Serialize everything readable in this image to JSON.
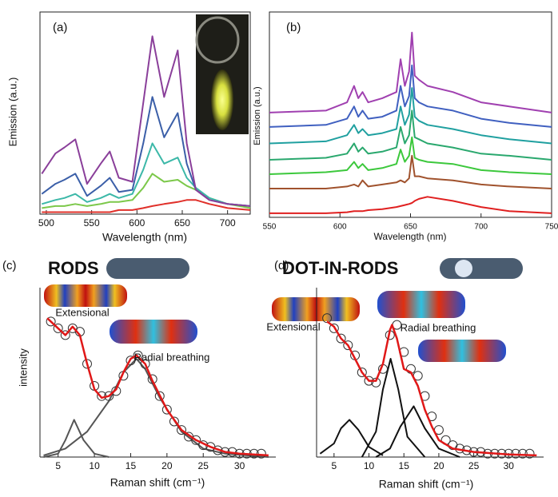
{
  "chart_data": [
    {
      "type": "line",
      "panel_label": "(a)",
      "xlabel": "Wavelength (nm)",
      "ylabel": "Emission (a.u.)",
      "frame": true,
      "x": [
        495,
        510,
        520,
        532,
        545,
        560,
        570,
        580,
        595,
        607,
        617,
        630,
        645,
        655,
        665,
        680,
        700,
        725
      ],
      "xlim": [
        493,
        725
      ],
      "xticks": [
        500,
        550,
        600,
        650,
        700
      ],
      "ylim": [
        0,
        1
      ],
      "series": [
        {
          "color": "#e0302a",
          "values": [
            0.01,
            0.01,
            0.01,
            0.01,
            0.01,
            0.01,
            0.01,
            0.02,
            0.02,
            0.03,
            0.04,
            0.05,
            0.06,
            0.07,
            0.07,
            0.05,
            0.03,
            0.02
          ]
        },
        {
          "color": "#7cc84a",
          "values": [
            0.03,
            0.04,
            0.04,
            0.05,
            0.04,
            0.05,
            0.06,
            0.06,
            0.07,
            0.13,
            0.2,
            0.16,
            0.17,
            0.14,
            0.12,
            0.08,
            0.05,
            0.03
          ]
        },
        {
          "color": "#3cb8a8",
          "values": [
            0.05,
            0.07,
            0.08,
            0.1,
            0.06,
            0.08,
            0.1,
            0.08,
            0.1,
            0.22,
            0.35,
            0.25,
            0.28,
            0.18,
            0.13,
            0.08,
            0.05,
            0.04
          ]
        },
        {
          "color": "#3b5fa8",
          "values": [
            0.1,
            0.15,
            0.17,
            0.2,
            0.09,
            0.14,
            0.18,
            0.11,
            0.12,
            0.35,
            0.58,
            0.38,
            0.5,
            0.25,
            0.12,
            0.07,
            0.05,
            0.04
          ]
        },
        {
          "color": "#8a3f9a",
          "values": [
            0.2,
            0.3,
            0.33,
            0.37,
            0.15,
            0.25,
            0.31,
            0.18,
            0.16,
            0.55,
            0.88,
            0.58,
            0.81,
            0.35,
            0.12,
            0.07,
            0.05,
            0.04
          ]
        }
      ]
    },
    {
      "type": "line",
      "panel_label": "(b)",
      "xlabel": "Wavelength (nm)",
      "ylabel": "Emission (a.u.)",
      "frame": true,
      "x": [
        550,
        590,
        605,
        610,
        613,
        616,
        620,
        630,
        640,
        643,
        646,
        649,
        651,
        653,
        656,
        662,
        680,
        700,
        720,
        750
      ],
      "xlim": [
        550,
        750
      ],
      "xticks": [
        550,
        600,
        650,
        700,
        750
      ],
      "ylim": [
        0,
        1
      ],
      "series": [
        {
          "color": "#e02020",
          "values": [
            0.02,
            0.02,
            0.025,
            0.03,
            0.03,
            0.03,
            0.035,
            0.04,
            0.05,
            0.055,
            0.06,
            0.065,
            0.07,
            0.08,
            0.09,
            0.1,
            0.08,
            0.05,
            0.03,
            0.02
          ]
        },
        {
          "color": "#a0522d",
          "values": [
            0.14,
            0.14,
            0.15,
            0.16,
            0.15,
            0.18,
            0.15,
            0.16,
            0.17,
            0.18,
            0.17,
            0.19,
            0.3,
            0.2,
            0.2,
            0.19,
            0.18,
            0.16,
            0.15,
            0.14
          ]
        },
        {
          "color": "#3cc83c",
          "values": [
            0.21,
            0.22,
            0.23,
            0.27,
            0.24,
            0.26,
            0.23,
            0.24,
            0.26,
            0.33,
            0.27,
            0.3,
            0.39,
            0.29,
            0.28,
            0.27,
            0.26,
            0.23,
            0.22,
            0.21
          ]
        },
        {
          "color": "#2aa86e",
          "values": [
            0.28,
            0.29,
            0.31,
            0.36,
            0.32,
            0.34,
            0.31,
            0.32,
            0.34,
            0.44,
            0.36,
            0.4,
            0.52,
            0.39,
            0.38,
            0.36,
            0.34,
            0.31,
            0.3,
            0.28
          ]
        },
        {
          "color": "#20a0a0",
          "values": [
            0.36,
            0.37,
            0.4,
            0.45,
            0.41,
            0.43,
            0.4,
            0.41,
            0.43,
            0.54,
            0.45,
            0.5,
            0.63,
            0.49,
            0.47,
            0.45,
            0.43,
            0.4,
            0.38,
            0.36
          ]
        },
        {
          "color": "#4060c0",
          "values": [
            0.44,
            0.45,
            0.48,
            0.54,
            0.49,
            0.52,
            0.48,
            0.49,
            0.52,
            0.64,
            0.54,
            0.59,
            0.74,
            0.58,
            0.56,
            0.54,
            0.52,
            0.48,
            0.46,
            0.44
          ]
        },
        {
          "color": "#a040b0",
          "values": [
            0.51,
            0.52,
            0.56,
            0.64,
            0.58,
            0.61,
            0.56,
            0.58,
            0.61,
            0.77,
            0.64,
            0.71,
            0.9,
            0.69,
            0.67,
            0.64,
            0.61,
            0.56,
            0.54,
            0.51
          ]
        }
      ]
    },
    {
      "type": "line",
      "panel_label": "(c)",
      "title": "RODS",
      "xlabel": "Raman shift (cm⁻¹)",
      "ylabel": "intensity",
      "frame": false,
      "xlim": [
        2.5,
        35
      ],
      "xticks": [
        5,
        10,
        15,
        20,
        25,
        30
      ],
      "ylim": [
        0,
        1
      ],
      "annotations": [
        "Extensional",
        "Radial breathing"
      ],
      "series": [
        {
          "color": "#555555",
          "x": [
            3,
            5,
            6,
            7.2,
            8.5,
            10,
            12
          ],
          "values": [
            0,
            0.02,
            0.1,
            0.22,
            0.1,
            0.02,
            0
          ]
        },
        {
          "color": "#555555",
          "x": [
            3,
            6,
            9,
            12,
            14,
            15.8,
            17,
            19,
            22,
            25,
            28,
            34
          ],
          "values": [
            0.01,
            0.05,
            0.15,
            0.33,
            0.5,
            0.58,
            0.52,
            0.35,
            0.15,
            0.05,
            0.02,
            0
          ]
        },
        {
          "color": "#333333",
          "style": "circles",
          "x": [
            4,
            5,
            6,
            7,
            8,
            9,
            10,
            11,
            12,
            13,
            14,
            15,
            16,
            17,
            18,
            19,
            20,
            21,
            22,
            23,
            24,
            25,
            26,
            27,
            28,
            29,
            30,
            31,
            32,
            33
          ],
          "values": [
            0.8,
            0.76,
            0.72,
            0.76,
            0.74,
            0.55,
            0.42,
            0.36,
            0.36,
            0.39,
            0.48,
            0.57,
            0.6,
            0.55,
            0.46,
            0.36,
            0.28,
            0.21,
            0.16,
            0.12,
            0.1,
            0.07,
            0.06,
            0.04,
            0.03,
            0.03,
            0.02,
            0.02,
            0.02,
            0.02
          ]
        },
        {
          "color": "#e01818",
          "x": [
            3.5,
            5,
            6,
            7,
            8,
            9,
            10,
            11,
            12,
            13,
            14,
            15,
            15.8,
            17,
            18,
            20,
            22,
            24,
            26,
            28,
            30,
            34
          ],
          "values": [
            0.82,
            0.76,
            0.72,
            0.77,
            0.72,
            0.55,
            0.4,
            0.35,
            0.36,
            0.4,
            0.5,
            0.58,
            0.6,
            0.55,
            0.45,
            0.28,
            0.16,
            0.1,
            0.06,
            0.03,
            0.02,
            0.01
          ]
        }
      ]
    },
    {
      "type": "line",
      "panel_label": "(d)",
      "title": "DOT-IN-RODS",
      "xlabel": "Raman shift (cm⁻¹)",
      "frame": false,
      "xlim": [
        2.5,
        35
      ],
      "xticks": [
        5,
        10,
        15,
        20,
        25,
        30
      ],
      "ylim": [
        0,
        1
      ],
      "annotations": [
        "Extensional",
        "Radial breathing"
      ],
      "series": [
        {
          "color": "#111111",
          "x": [
            3,
            5,
            6,
            7.2,
            8.5,
            10,
            12
          ],
          "values": [
            0.02,
            0.08,
            0.17,
            0.22,
            0.16,
            0.06,
            0.01
          ]
        },
        {
          "color": "#111111",
          "x": [
            9,
            11,
            12,
            13.1,
            14.2,
            15.5,
            18
          ],
          "values": [
            0,
            0.15,
            0.4,
            0.58,
            0.4,
            0.12,
            0
          ]
        },
        {
          "color": "#111111",
          "x": [
            11,
            13,
            14.5,
            16.4,
            18,
            20,
            23
          ],
          "values": [
            0,
            0.05,
            0.18,
            0.3,
            0.17,
            0.05,
            0
          ]
        },
        {
          "color": "#333333",
          "style": "circles",
          "x": [
            4,
            5,
            6,
            7,
            8,
            9,
            10,
            11,
            12,
            13,
            14,
            15,
            16,
            17,
            18,
            19,
            20,
            21,
            22,
            23,
            24,
            25,
            26,
            27,
            28,
            29,
            30,
            31,
            32,
            33
          ],
          "values": [
            0.82,
            0.76,
            0.7,
            0.66,
            0.6,
            0.5,
            0.45,
            0.44,
            0.52,
            0.72,
            0.78,
            0.62,
            0.52,
            0.48,
            0.36,
            0.24,
            0.16,
            0.1,
            0.07,
            0.05,
            0.04,
            0.03,
            0.03,
            0.02,
            0.02,
            0.02,
            0.02,
            0.02,
            0.02,
            0.02
          ]
        },
        {
          "color": "#e01818",
          "x": [
            4,
            5,
            6,
            7,
            8,
            9,
            10,
            11,
            12,
            13,
            13.3,
            14,
            15,
            16,
            17,
            18,
            19,
            20,
            22,
            25,
            30,
            34
          ],
          "values": [
            0.8,
            0.77,
            0.7,
            0.66,
            0.58,
            0.5,
            0.45,
            0.45,
            0.55,
            0.75,
            0.78,
            0.7,
            0.52,
            0.5,
            0.42,
            0.28,
            0.18,
            0.1,
            0.05,
            0.03,
            0.015,
            0.01
          ]
        }
      ]
    }
  ]
}
